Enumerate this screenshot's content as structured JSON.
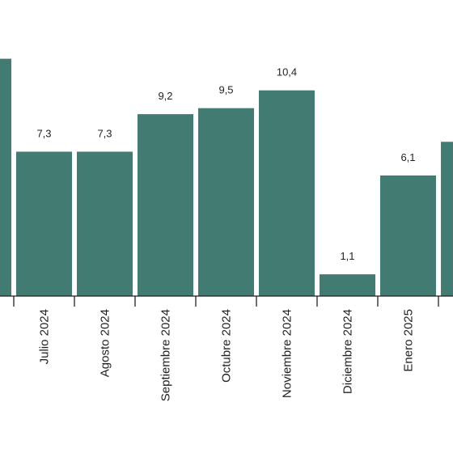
{
  "chart_data": {
    "type": "bar",
    "categories": [
      "",
      "Julio 2024",
      "Agosto 2024",
      "Septiembre 2024",
      "Octubre 2024",
      "Noviembre 2024",
      "Diciembre 2024",
      "Enero 2025",
      ""
    ],
    "values": [
      12.0,
      7.3,
      7.3,
      9.2,
      9.5,
      10.4,
      1.1,
      6.1,
      7.8
    ],
    "value_labels": [
      "",
      "7,3",
      "7,3",
      "9,2",
      "9,5",
      "10,4",
      "1,1",
      "6,1",
      ""
    ],
    "title": "",
    "xlabel": "",
    "ylabel": "",
    "ylim": [
      0,
      12.5
    ],
    "grid": false,
    "bar_color": "#427b72"
  }
}
